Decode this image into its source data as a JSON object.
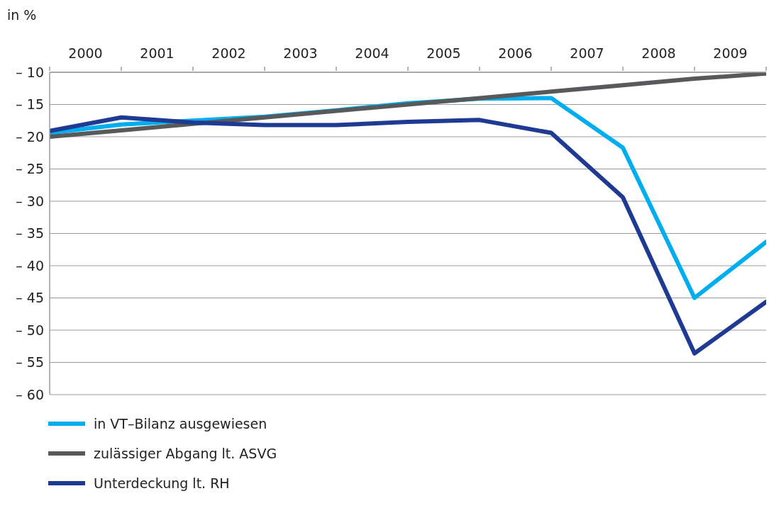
{
  "chart_data": {
    "type": "line",
    "ylabel": "in %",
    "x": [
      2000,
      2001,
      2002,
      2003,
      2004,
      2005,
      2006,
      2007,
      2008,
      2009,
      2010
    ],
    "xlim": [
      2000,
      2010
    ],
    "xticks": [
      {
        "value": 2000,
        "label": null
      },
      {
        "value": 2000.5,
        "label": "2000"
      },
      {
        "value": 2001,
        "label": null
      },
      {
        "value": 2001.5,
        "label": "2001"
      },
      {
        "value": 2002,
        "label": null
      },
      {
        "value": 2002.5,
        "label": "2002"
      },
      {
        "value": 2003,
        "label": null
      },
      {
        "value": 2003.5,
        "label": "2003"
      },
      {
        "value": 2004,
        "label": null
      },
      {
        "value": 2004.5,
        "label": "2004"
      },
      {
        "value": 2005,
        "label": null
      },
      {
        "value": 2005.5,
        "label": "2005"
      },
      {
        "value": 2006,
        "label": null
      },
      {
        "value": 2006.5,
        "label": "2006"
      },
      {
        "value": 2007,
        "label": null
      },
      {
        "value": 2007.5,
        "label": "2007"
      },
      {
        "value": 2008,
        "label": null
      },
      {
        "value": 2008.5,
        "label": "2008"
      },
      {
        "value": 2009,
        "label": null
      },
      {
        "value": 2009.5,
        "label": "2009"
      },
      {
        "value": 2010,
        "label": null
      }
    ],
    "ylim": [
      -60,
      -10
    ],
    "yticks": [
      {
        "value": -10,
        "label": "– 10"
      },
      {
        "value": -15,
        "label": "– 15"
      },
      {
        "value": -20,
        "label": "– 20"
      },
      {
        "value": -25,
        "label": "– 25"
      },
      {
        "value": -30,
        "label": "– 30"
      },
      {
        "value": -35,
        "label": "– 35"
      },
      {
        "value": -40,
        "label": "– 40"
      },
      {
        "value": -45,
        "label": "– 45"
      },
      {
        "value": -50,
        "label": "– 50"
      },
      {
        "value": -55,
        "label": "– 55"
      },
      {
        "value": -60,
        "label": "– 60"
      }
    ],
    "grid": "y",
    "legend": "bottom",
    "marker": "none",
    "line_style": "solid",
    "series": [
      {
        "name": "in VT–Bilanz ausgewiesen",
        "color": "#00aeef",
        "values": [
          -19.4,
          -18.1,
          -17.5,
          -16.9,
          -15.9,
          -14.8,
          -14.1,
          -14.0,
          -21.7,
          -45.0,
          -36.3
        ]
      },
      {
        "name": "zulässiger Abgang lt. ASVG",
        "color": "#58595b",
        "values": [
          -20.0,
          -19.0,
          -18.0,
          -17.0,
          -16.0,
          -15.0,
          -14.0,
          -13.0,
          -12.0,
          -11.0,
          -10.2
        ]
      },
      {
        "name": "Unterdeckung lt. RH",
        "color": "#1f3a93",
        "values": [
          -19.1,
          -17.0,
          -17.8,
          -18.2,
          -18.2,
          -17.7,
          -17.4,
          -19.4,
          -29.4,
          -53.6,
          -45.6
        ]
      }
    ]
  }
}
